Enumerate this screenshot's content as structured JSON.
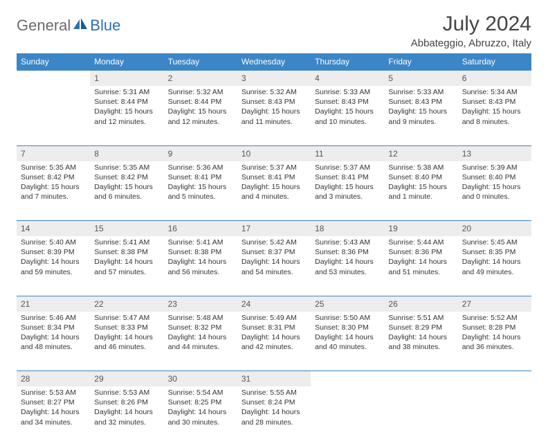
{
  "brand": {
    "part1": "General",
    "part2": "Blue"
  },
  "title": "July 2024",
  "location": "Abbateggio, Abruzzo, Italy",
  "colors": {
    "header_bg": "#3b86c7",
    "header_text": "#ffffff",
    "daynum_bg": "#ededed",
    "border": "#3b86c7",
    "text": "#333333",
    "logo_gray": "#6a6a6a",
    "logo_blue": "#2b6fb0"
  },
  "weekdays": [
    "Sunday",
    "Monday",
    "Tuesday",
    "Wednesday",
    "Thursday",
    "Friday",
    "Saturday"
  ],
  "weeks": [
    {
      "nums": [
        "",
        "1",
        "2",
        "3",
        "4",
        "5",
        "6"
      ],
      "cells": [
        null,
        {
          "sunrise": "Sunrise: 5:31 AM",
          "sunset": "Sunset: 8:44 PM",
          "day1": "Daylight: 15 hours",
          "day2": "and 12 minutes."
        },
        {
          "sunrise": "Sunrise: 5:32 AM",
          "sunset": "Sunset: 8:44 PM",
          "day1": "Daylight: 15 hours",
          "day2": "and 12 minutes."
        },
        {
          "sunrise": "Sunrise: 5:32 AM",
          "sunset": "Sunset: 8:43 PM",
          "day1": "Daylight: 15 hours",
          "day2": "and 11 minutes."
        },
        {
          "sunrise": "Sunrise: 5:33 AM",
          "sunset": "Sunset: 8:43 PM",
          "day1": "Daylight: 15 hours",
          "day2": "and 10 minutes."
        },
        {
          "sunrise": "Sunrise: 5:33 AM",
          "sunset": "Sunset: 8:43 PM",
          "day1": "Daylight: 15 hours",
          "day2": "and 9 minutes."
        },
        {
          "sunrise": "Sunrise: 5:34 AM",
          "sunset": "Sunset: 8:43 PM",
          "day1": "Daylight: 15 hours",
          "day2": "and 8 minutes."
        }
      ]
    },
    {
      "nums": [
        "7",
        "8",
        "9",
        "10",
        "11",
        "12",
        "13"
      ],
      "cells": [
        {
          "sunrise": "Sunrise: 5:35 AM",
          "sunset": "Sunset: 8:42 PM",
          "day1": "Daylight: 15 hours",
          "day2": "and 7 minutes."
        },
        {
          "sunrise": "Sunrise: 5:35 AM",
          "sunset": "Sunset: 8:42 PM",
          "day1": "Daylight: 15 hours",
          "day2": "and 6 minutes."
        },
        {
          "sunrise": "Sunrise: 5:36 AM",
          "sunset": "Sunset: 8:41 PM",
          "day1": "Daylight: 15 hours",
          "day2": "and 5 minutes."
        },
        {
          "sunrise": "Sunrise: 5:37 AM",
          "sunset": "Sunset: 8:41 PM",
          "day1": "Daylight: 15 hours",
          "day2": "and 4 minutes."
        },
        {
          "sunrise": "Sunrise: 5:37 AM",
          "sunset": "Sunset: 8:41 PM",
          "day1": "Daylight: 15 hours",
          "day2": "and 3 minutes."
        },
        {
          "sunrise": "Sunrise: 5:38 AM",
          "sunset": "Sunset: 8:40 PM",
          "day1": "Daylight: 15 hours",
          "day2": "and 1 minute."
        },
        {
          "sunrise": "Sunrise: 5:39 AM",
          "sunset": "Sunset: 8:40 PM",
          "day1": "Daylight: 15 hours",
          "day2": "and 0 minutes."
        }
      ]
    },
    {
      "nums": [
        "14",
        "15",
        "16",
        "17",
        "18",
        "19",
        "20"
      ],
      "cells": [
        {
          "sunrise": "Sunrise: 5:40 AM",
          "sunset": "Sunset: 8:39 PM",
          "day1": "Daylight: 14 hours",
          "day2": "and 59 minutes."
        },
        {
          "sunrise": "Sunrise: 5:41 AM",
          "sunset": "Sunset: 8:38 PM",
          "day1": "Daylight: 14 hours",
          "day2": "and 57 minutes."
        },
        {
          "sunrise": "Sunrise: 5:41 AM",
          "sunset": "Sunset: 8:38 PM",
          "day1": "Daylight: 14 hours",
          "day2": "and 56 minutes."
        },
        {
          "sunrise": "Sunrise: 5:42 AM",
          "sunset": "Sunset: 8:37 PM",
          "day1": "Daylight: 14 hours",
          "day2": "and 54 minutes."
        },
        {
          "sunrise": "Sunrise: 5:43 AM",
          "sunset": "Sunset: 8:36 PM",
          "day1": "Daylight: 14 hours",
          "day2": "and 53 minutes."
        },
        {
          "sunrise": "Sunrise: 5:44 AM",
          "sunset": "Sunset: 8:36 PM",
          "day1": "Daylight: 14 hours",
          "day2": "and 51 minutes."
        },
        {
          "sunrise": "Sunrise: 5:45 AM",
          "sunset": "Sunset: 8:35 PM",
          "day1": "Daylight: 14 hours",
          "day2": "and 49 minutes."
        }
      ]
    },
    {
      "nums": [
        "21",
        "22",
        "23",
        "24",
        "25",
        "26",
        "27"
      ],
      "cells": [
        {
          "sunrise": "Sunrise: 5:46 AM",
          "sunset": "Sunset: 8:34 PM",
          "day1": "Daylight: 14 hours",
          "day2": "and 48 minutes."
        },
        {
          "sunrise": "Sunrise: 5:47 AM",
          "sunset": "Sunset: 8:33 PM",
          "day1": "Daylight: 14 hours",
          "day2": "and 46 minutes."
        },
        {
          "sunrise": "Sunrise: 5:48 AM",
          "sunset": "Sunset: 8:32 PM",
          "day1": "Daylight: 14 hours",
          "day2": "and 44 minutes."
        },
        {
          "sunrise": "Sunrise: 5:49 AM",
          "sunset": "Sunset: 8:31 PM",
          "day1": "Daylight: 14 hours",
          "day2": "and 42 minutes."
        },
        {
          "sunrise": "Sunrise: 5:50 AM",
          "sunset": "Sunset: 8:30 PM",
          "day1": "Daylight: 14 hours",
          "day2": "and 40 minutes."
        },
        {
          "sunrise": "Sunrise: 5:51 AM",
          "sunset": "Sunset: 8:29 PM",
          "day1": "Daylight: 14 hours",
          "day2": "and 38 minutes."
        },
        {
          "sunrise": "Sunrise: 5:52 AM",
          "sunset": "Sunset: 8:28 PM",
          "day1": "Daylight: 14 hours",
          "day2": "and 36 minutes."
        }
      ]
    },
    {
      "nums": [
        "28",
        "29",
        "30",
        "31",
        "",
        "",
        ""
      ],
      "cells": [
        {
          "sunrise": "Sunrise: 5:53 AM",
          "sunset": "Sunset: 8:27 PM",
          "day1": "Daylight: 14 hours",
          "day2": "and 34 minutes."
        },
        {
          "sunrise": "Sunrise: 5:53 AM",
          "sunset": "Sunset: 8:26 PM",
          "day1": "Daylight: 14 hours",
          "day2": "and 32 minutes."
        },
        {
          "sunrise": "Sunrise: 5:54 AM",
          "sunset": "Sunset: 8:25 PM",
          "day1": "Daylight: 14 hours",
          "day2": "and 30 minutes."
        },
        {
          "sunrise": "Sunrise: 5:55 AM",
          "sunset": "Sunset: 8:24 PM",
          "day1": "Daylight: 14 hours",
          "day2": "and 28 minutes."
        },
        null,
        null,
        null
      ]
    }
  ]
}
